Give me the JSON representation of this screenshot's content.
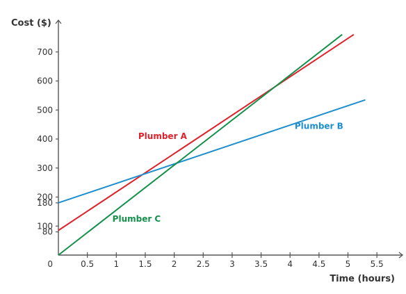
{
  "chart_data": {
    "type": "line",
    "xlabel": "Time (hours)",
    "ylabel": "Cost ($)",
    "x_ticks": [
      "0.5",
      "1",
      "1.5",
      "2",
      "2.5",
      "3",
      "3.5",
      "4",
      "4.5",
      "5",
      "5.5"
    ],
    "y_ticks": [
      "80",
      "100",
      "180",
      "200",
      "300",
      "400",
      "500",
      "600",
      "700"
    ],
    "origin_label": "0",
    "xlim": [
      0,
      6
    ],
    "ylim": [
      0,
      780
    ],
    "grid": false,
    "series": [
      {
        "name": "Plumber A",
        "color": "#e0202b",
        "x": [
          0,
          5.1
        ],
        "y": [
          85,
          760
        ]
      },
      {
        "name": "Plumber B",
        "color": "#1d8fce",
        "x": [
          0,
          5.3
        ],
        "y": [
          180,
          535
        ]
      },
      {
        "name": "Plumber C",
        "color": "#13904a",
        "x": [
          0,
          4.9
        ],
        "y": [
          0,
          760
        ]
      }
    ]
  }
}
